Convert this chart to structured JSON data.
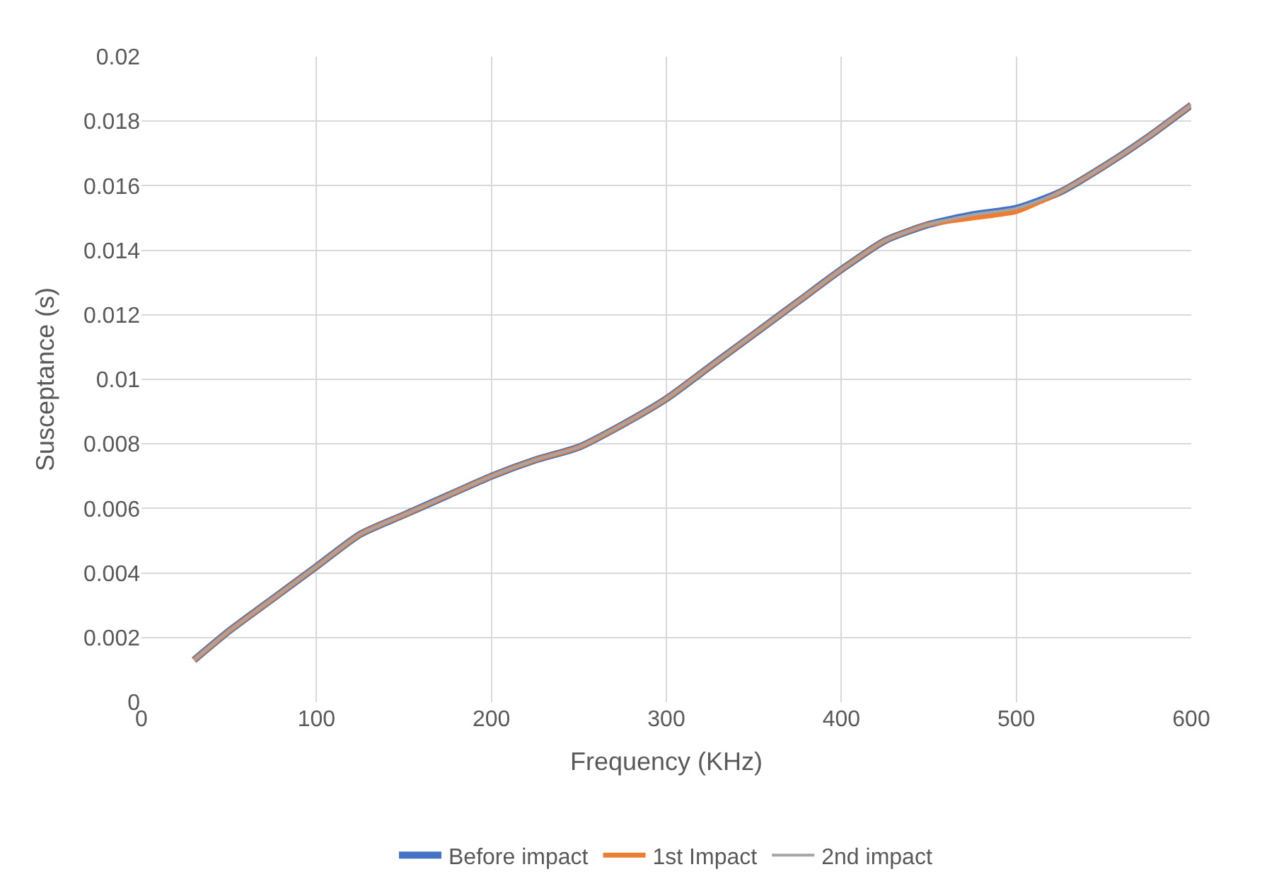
{
  "chart_data": {
    "type": "line",
    "xlabel": "Frequency (KHz)",
    "ylabel": "Susceptance (s)",
    "x": [
      30,
      50,
      75,
      100,
      125,
      150,
      175,
      200,
      225,
      250,
      275,
      300,
      325,
      350,
      375,
      400,
      425,
      450,
      475,
      500,
      525,
      550,
      575,
      600
    ],
    "series": [
      {
        "name": "Before impact",
        "color": "#4472c4",
        "values": [
          0.0013,
          0.0022,
          0.0032,
          0.0042,
          0.0052,
          0.0058,
          0.0064,
          0.007,
          0.0075,
          0.0079,
          0.0086,
          0.0094,
          0.0104,
          0.0114,
          0.0124,
          0.0134,
          0.0143,
          0.0148,
          0.0151,
          0.0153,
          0.0158,
          0.0166,
          0.0175,
          0.0185
        ]
      },
      {
        "name": "1st Impact",
        "color": "#ed7d31",
        "values": [
          0.0013,
          0.0022,
          0.0032,
          0.0042,
          0.0052,
          0.0058,
          0.0064,
          0.007,
          0.0075,
          0.0079,
          0.0086,
          0.0094,
          0.0104,
          0.0114,
          0.0124,
          0.0134,
          0.0143,
          0.0148,
          0.015,
          0.0152,
          0.0158,
          0.0166,
          0.0175,
          0.0185
        ]
      },
      {
        "name": "2nd impact",
        "color": "#a5a5a5",
        "values": [
          0.0013,
          0.0022,
          0.0032,
          0.0042,
          0.0052,
          0.0058,
          0.0064,
          0.007,
          0.0075,
          0.0079,
          0.0086,
          0.0094,
          0.0104,
          0.0114,
          0.0124,
          0.0134,
          0.0143,
          0.0148,
          0.0151,
          0.0153,
          0.0158,
          0.0166,
          0.0175,
          0.0185
        ]
      }
    ],
    "xlim": [
      0,
      600
    ],
    "xticks": [
      0,
      100,
      200,
      300,
      400,
      500,
      600
    ],
    "ylim": [
      0,
      0.02
    ],
    "yticks": [
      0,
      0.002,
      0.004,
      0.006,
      0.008,
      0.01,
      0.012,
      0.014,
      0.016,
      0.018,
      0.02
    ],
    "grid": true,
    "legend": "bottom",
    "marker": "none",
    "line_style": "solid"
  }
}
